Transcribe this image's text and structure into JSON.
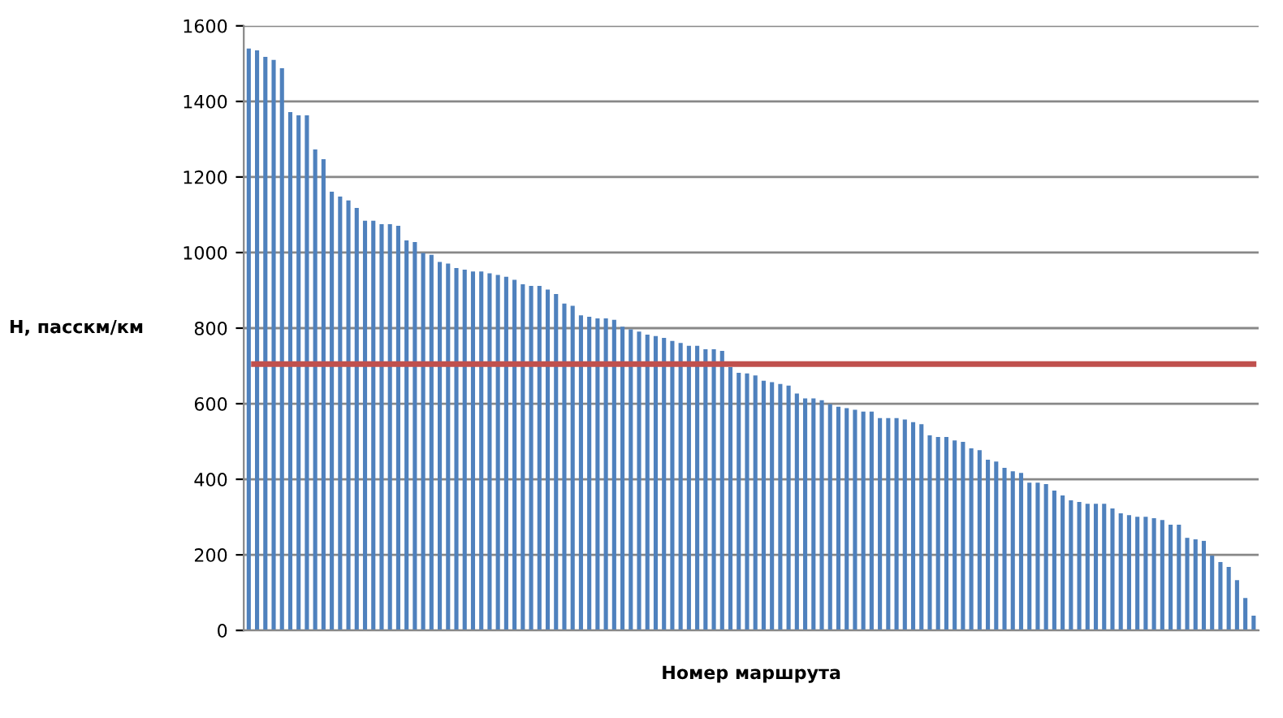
{
  "chart_data": {
    "type": "bar",
    "xlabel": "Номер маршрута",
    "ylabel": "Н, пасскм/км",
    "categories": [
      null,
      null,
      null,
      null,
      null,
      null,
      null,
      null,
      null,
      null,
      null,
      null,
      null,
      null,
      null,
      null,
      null,
      null,
      null,
      null,
      null,
      null,
      null,
      null,
      null,
      null,
      null,
      null,
      null,
      null,
      null,
      null,
      null,
      null,
      null,
      null,
      null,
      null,
      null,
      null,
      null,
      null,
      null,
      null,
      null,
      null,
      null,
      null,
      null,
      null,
      null,
      null,
      null,
      null,
      null,
      null,
      null,
      null,
      null,
      null,
      null,
      null,
      null,
      null,
      null,
      null,
      null,
      null,
      null,
      null,
      null,
      null,
      null,
      null,
      null,
      null,
      null,
      null,
      null,
      null,
      null,
      null,
      null,
      null,
      null,
      null,
      null,
      null,
      null,
      null,
      null,
      null,
      null,
      null,
      null,
      null,
      null,
      null,
      null,
      null,
      null,
      null,
      null,
      null,
      null,
      null,
      null,
      null,
      null,
      null,
      null,
      null,
      null,
      null,
      null,
      null,
      null,
      null,
      null,
      null,
      null,
      null
    ],
    "series": [
      {
        "color": "#4f81bd",
        "values": [
          1540,
          1535,
          1518,
          1510,
          1488,
          1372,
          1363,
          1363,
          1273,
          1247,
          1161,
          1148,
          1138,
          1118,
          1084,
          1084,
          1075,
          1075,
          1071,
          1032,
          1028,
          999,
          994,
          975,
          971,
          959,
          955,
          950,
          950,
          945,
          941,
          936,
          928,
          916,
          912,
          912,
          902,
          890,
          865,
          859,
          834,
          830,
          826,
          826,
          822,
          804,
          797,
          791,
          783,
          779,
          774,
          766,
          761,
          753,
          753,
          744,
          744,
          740,
          697,
          682,
          680,
          675,
          661,
          657,
          652,
          648,
          627,
          614,
          614,
          609,
          599,
          592,
          588,
          584,
          579,
          579,
          562,
          562,
          562,
          558,
          551,
          546,
          516,
          512,
          512,
          503,
          499,
          482,
          477,
          452,
          447,
          430,
          421,
          417,
          391,
          391,
          387,
          370,
          357,
          344,
          340,
          335,
          335,
          335,
          323,
          310,
          305,
          301,
          301,
          297,
          292,
          280,
          280,
          245,
          241,
          237,
          198,
          181,
          168,
          133,
          86,
          39
        ]
      }
    ],
    "ylim": [
      0,
      1600
    ],
    "yticks": [
      0,
      200,
      400,
      600,
      800,
      1000,
      1200,
      1400,
      1600
    ],
    "grid": "y",
    "ref_lines": [
      {
        "axis": "y",
        "value": 705,
        "color": "#c0504d"
      }
    ]
  }
}
